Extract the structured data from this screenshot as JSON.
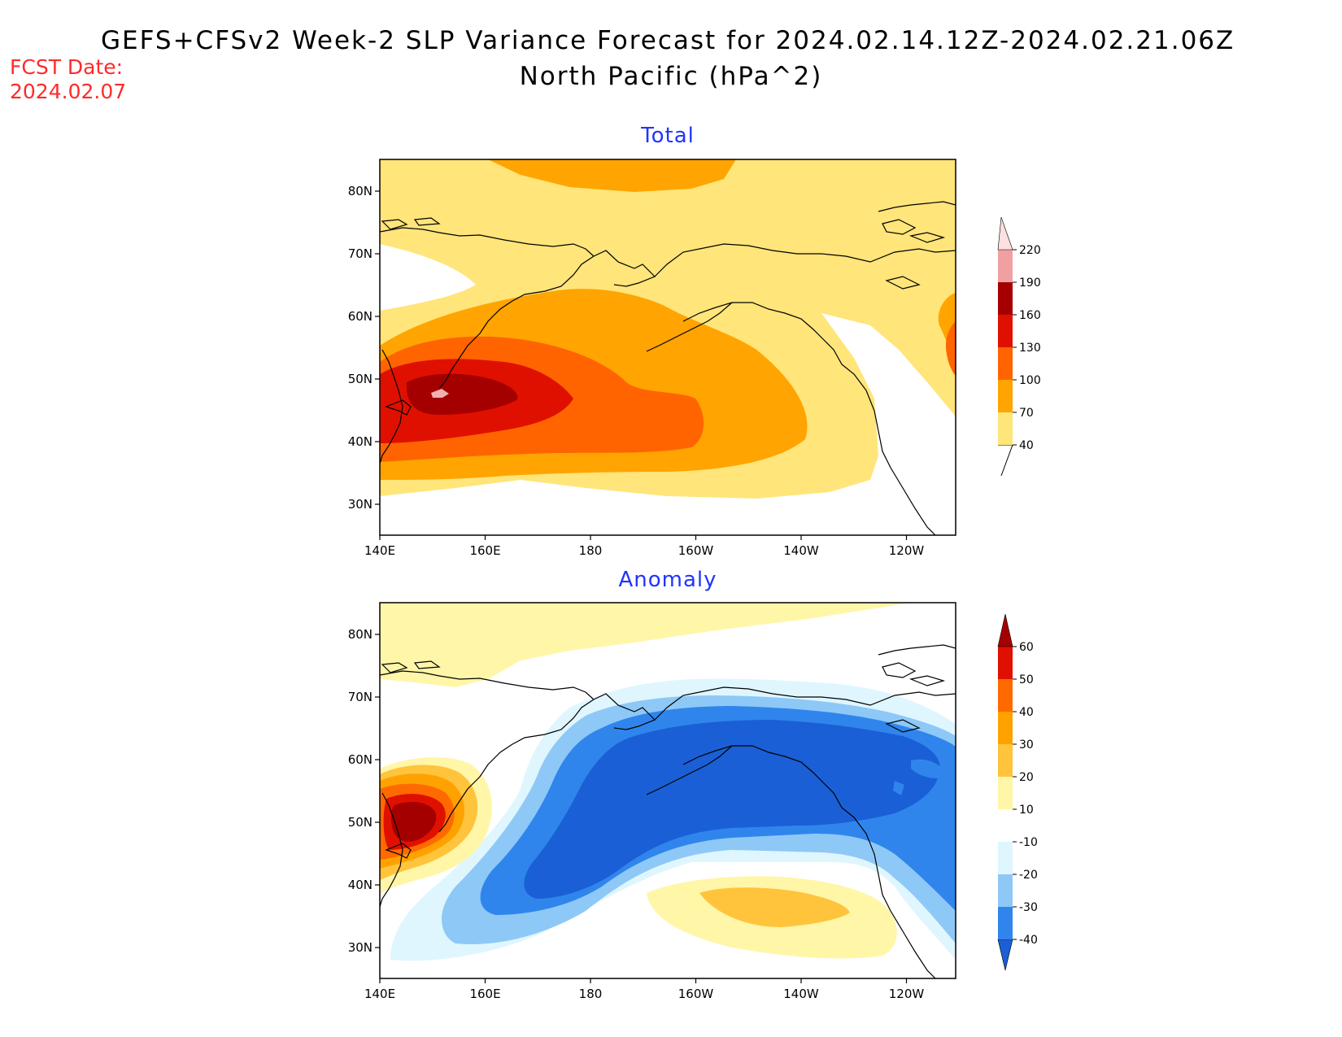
{
  "header": {
    "title_line1": "GEFS+CFSv2 Week-2 SLP Variance Forecast for 2024.02.14.12Z-2024.02.21.06Z",
    "title_line2": "North Pacific (hPa^2)",
    "fcst_label": "FCST Date:",
    "fcst_date": "2024.02.07"
  },
  "axes": {
    "lat_labels": [
      "80N",
      "70N",
      "60N",
      "50N",
      "40N",
      "30N"
    ],
    "lon_labels": [
      "140E",
      "160E",
      "180",
      "160W",
      "140W",
      "120W"
    ]
  },
  "panels": {
    "total": {
      "title": "Total",
      "colorbar": {
        "levels": [
          "40",
          "70",
          "100",
          "130",
          "160",
          "190",
          "220"
        ],
        "colors": [
          "#ffe57a",
          "#ffa400",
          "#ff6400",
          "#e01000",
          "#a50000",
          "#f0a0a0",
          "#fde0e0"
        ]
      }
    },
    "anomaly": {
      "title": "Anomaly",
      "colorbar": {
        "levels": [
          "-40",
          "-30",
          "-20",
          "-10",
          "10",
          "20",
          "30",
          "40",
          "50",
          "60"
        ],
        "colors": [
          "#1a5fd6",
          "#2f85ec",
          "#8ec8f7",
          "#dff6ff",
          "#ffffff",
          "#fff6a8",
          "#ffc43c",
          "#ffa200",
          "#ff6a00",
          "#e01000",
          "#a50000"
        ]
      }
    }
  }
}
